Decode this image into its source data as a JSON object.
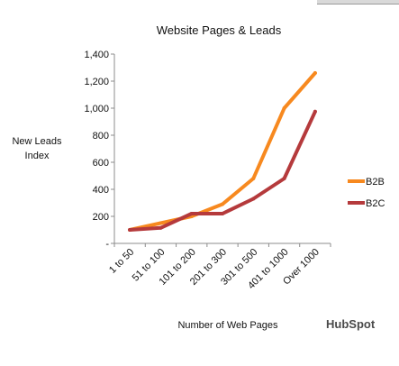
{
  "chart_data": {
    "type": "line",
    "title": "Website Pages & Leads",
    "xlabel": "Number of Web Pages",
    "ylabel_lines": [
      "New Leads",
      "Index"
    ],
    "categories": [
      "1 to 50",
      "51 to 100",
      "101 to 200",
      "201 to 300",
      "301 to 500",
      "401 to 1000",
      "Over 1000"
    ],
    "ylim": [
      0,
      1400
    ],
    "yticks": [
      0,
      200,
      400,
      600,
      800,
      1000,
      1200,
      1400
    ],
    "ytick_labels": [
      "-",
      "200",
      "400",
      "600",
      "800",
      "1,000",
      "1,200",
      "1,400"
    ],
    "grid": false,
    "legend_position": "right",
    "series": [
      {
        "name": "B2B",
        "color": "#f7891f",
        "values": [
          100,
          150,
          200,
          290,
          480,
          1000,
          1260
        ]
      },
      {
        "name": "B2C",
        "color": "#b53a3c",
        "values": [
          100,
          115,
          220,
          220,
          330,
          480,
          975
        ]
      }
    ]
  },
  "branding": {
    "logo_text": "HubSpot"
  }
}
